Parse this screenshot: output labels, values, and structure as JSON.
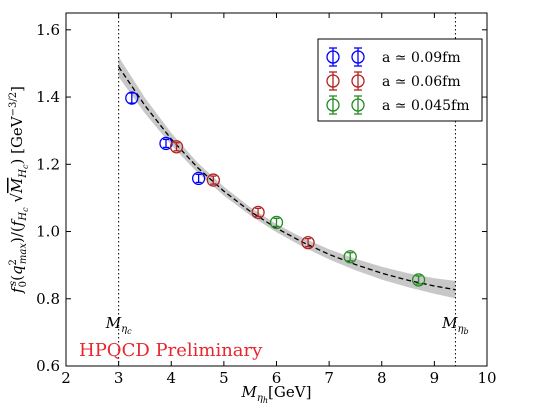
{
  "chart_data": {
    "type": "scatter",
    "xlabel": "M_{η_h}[GeV]",
    "ylabel": "f_0^s(q^2_max)/(f_{H_c}√M_{H_c}) [GeV^{-3/2}]",
    "xlim": [
      2,
      10
    ],
    "ylim": [
      0.6,
      1.65
    ],
    "xticks": [
      "2",
      "3",
      "4",
      "5",
      "6",
      "7",
      "8",
      "9",
      "10"
    ],
    "yticks": [
      "0.6",
      "0.8",
      "1.0",
      "1.2",
      "1.4",
      "1.6"
    ],
    "legend_placement": "top-right",
    "series": [
      {
        "name": "a ≃ 0.09fm",
        "color": "#0000ff",
        "points": [
          {
            "x": 3.25,
            "y": 1.397,
            "err": 0.015
          },
          {
            "x": 3.9,
            "y": 1.262,
            "err": 0.012
          },
          {
            "x": 4.52,
            "y": 1.158,
            "err": 0.012
          }
        ]
      },
      {
        "name": "a ≃ 0.06fm",
        "color": "#b22222",
        "points": [
          {
            "x": 4.1,
            "y": 1.252,
            "err": 0.012
          },
          {
            "x": 4.8,
            "y": 1.153,
            "err": 0.012
          },
          {
            "x": 5.65,
            "y": 1.057,
            "err": 0.012
          },
          {
            "x": 6.6,
            "y": 0.967,
            "err": 0.012
          }
        ]
      },
      {
        "name": "a ≃ 0.045fm",
        "color": "#228b22",
        "points": [
          {
            "x": 6.0,
            "y": 1.027,
            "err": 0.012
          },
          {
            "x": 7.4,
            "y": 0.925,
            "err": 0.012
          },
          {
            "x": 8.7,
            "y": 0.856,
            "err": 0.012
          }
        ]
      }
    ],
    "fit_line": {
      "style": "dashed",
      "color": "#000000",
      "band_color": "#c8c8c8",
      "points": [
        {
          "x": 3.0,
          "y": 1.49,
          "lo": 1.46,
          "hi": 1.52
        },
        {
          "x": 3.5,
          "y": 1.375,
          "lo": 1.352,
          "hi": 1.398
        },
        {
          "x": 4.0,
          "y": 1.275,
          "lo": 1.257,
          "hi": 1.293
        },
        {
          "x": 4.5,
          "y": 1.19,
          "lo": 1.175,
          "hi": 1.205
        },
        {
          "x": 5.0,
          "y": 1.12,
          "lo": 1.107,
          "hi": 1.133
        },
        {
          "x": 5.5,
          "y": 1.06,
          "lo": 1.048,
          "hi": 1.072
        },
        {
          "x": 6.0,
          "y": 1.01,
          "lo": 0.998,
          "hi": 1.022
        },
        {
          "x": 6.5,
          "y": 0.968,
          "lo": 0.955,
          "hi": 0.981
        },
        {
          "x": 7.0,
          "y": 0.932,
          "lo": 0.917,
          "hi": 0.947
        },
        {
          "x": 7.5,
          "y": 0.902,
          "lo": 0.885,
          "hi": 0.919
        },
        {
          "x": 8.0,
          "y": 0.876,
          "lo": 0.857,
          "hi": 0.895
        },
        {
          "x": 8.5,
          "y": 0.855,
          "lo": 0.834,
          "hi": 0.876
        },
        {
          "x": 9.0,
          "y": 0.838,
          "lo": 0.815,
          "hi": 0.861
        },
        {
          "x": 9.4,
          "y": 0.827,
          "lo": 0.801,
          "hi": 0.853
        }
      ]
    },
    "vertical_lines": [
      {
        "x": 3.0,
        "label": "M_{η_c}"
      },
      {
        "x": 9.4,
        "label": "M_{η_b}"
      }
    ],
    "annotation": {
      "text": "HPQCD Preliminary",
      "color": "#e8262d"
    }
  }
}
